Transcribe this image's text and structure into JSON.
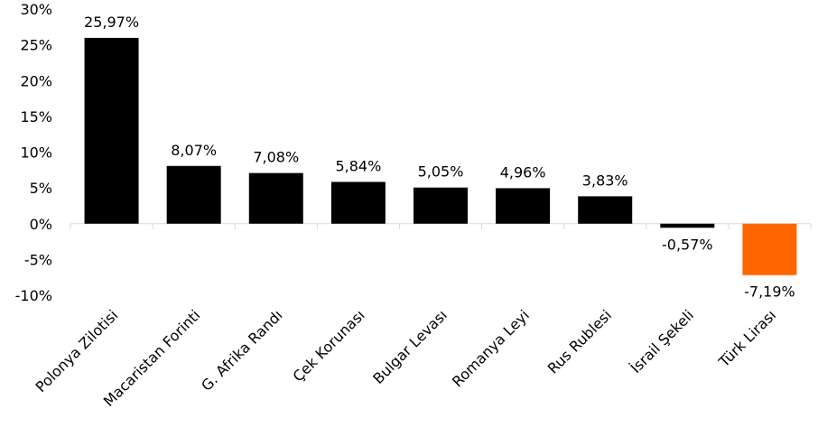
{
  "chart_data": {
    "type": "bar",
    "title": "",
    "xlabel": "",
    "ylabel": "",
    "categories": [
      "Polonya Zilotisi",
      "Macaristan Forinti",
      "G. Afrika Randı",
      "Çek Korunası",
      "Bulgar Levası",
      "Romanya Leyi",
      "Rus Rublesi",
      "İsrail Şekeli",
      "Türk Lirası"
    ],
    "values": [
      25.97,
      8.07,
      7.08,
      5.84,
      5.05,
      4.96,
      3.83,
      -0.57,
      -7.19
    ],
    "value_labels": [
      "25,97%",
      "8,07%",
      "7,08%",
      "5,84%",
      "5,05%",
      "4,96%",
      "3,83%",
      "-0,57%",
      "-7,19%"
    ],
    "ylim": [
      -10,
      30
    ],
    "yticks": [
      -10,
      -5,
      0,
      5,
      10,
      15,
      20,
      25,
      30
    ],
    "ytick_labels": [
      "-10%",
      "-5%",
      "0%",
      "5%",
      "10%",
      "15%",
      "20%",
      "25%",
      "30%"
    ],
    "bar_colors": [
      "#000000",
      "#000000",
      "#000000",
      "#000000",
      "#000000",
      "#000000",
      "#000000",
      "#000000",
      "#ff6600"
    ],
    "grid": false,
    "legend": "none"
  }
}
